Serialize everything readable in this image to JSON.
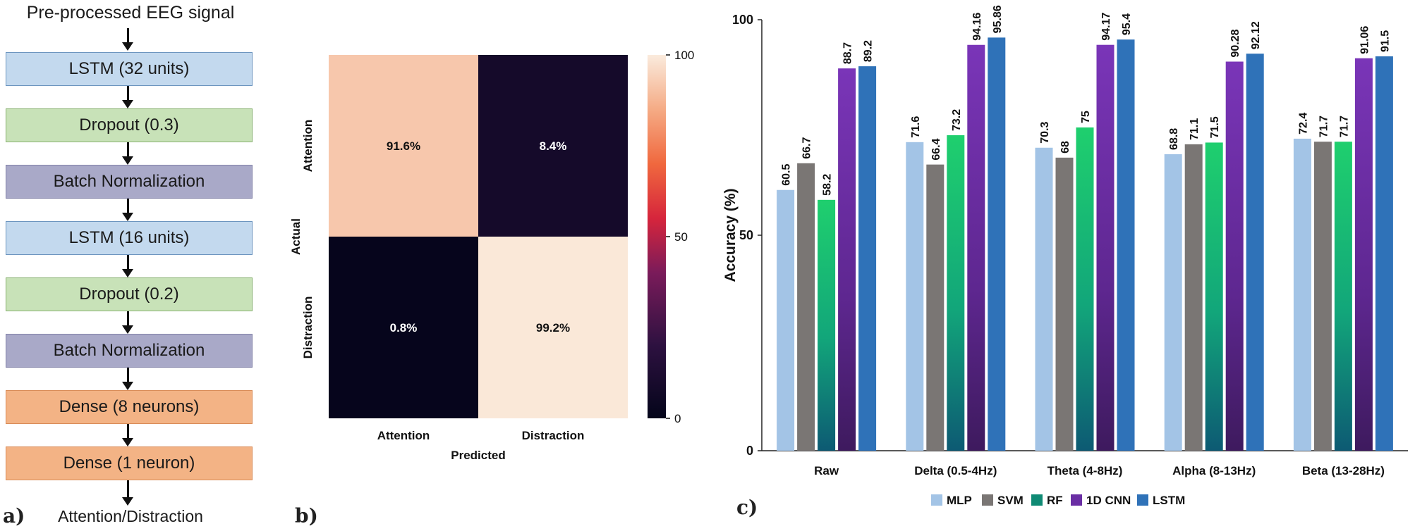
{
  "panel_a": {
    "label": "a)",
    "input_label": "Pre-processed EEG signal",
    "layers": [
      {
        "label": "LSTM (32  units)",
        "kind": "lstm"
      },
      {
        "label": "Dropout (0.3)",
        "kind": "drop"
      },
      {
        "label": "Batch Normalization",
        "kind": "bn"
      },
      {
        "label": "LSTM (16 units)",
        "kind": "lstm"
      },
      {
        "label": "Dropout (0.2)",
        "kind": "drop"
      },
      {
        "label": "Batch Normalization",
        "kind": "bn"
      },
      {
        "label": "Dense (8 neurons)",
        "kind": "dense"
      },
      {
        "label": "Dense (1 neuron)",
        "kind": "dense"
      }
    ],
    "output_label": "Attention/Distraction"
  },
  "panel_b": {
    "label": "b)"
  },
  "panel_c": {
    "label": "c)"
  },
  "chart_data": [
    {
      "type": "heatmap",
      "title": "",
      "xlabel": "Predicted",
      "ylabel": "Actual",
      "x_categories": [
        "Attention",
        "Distraction"
      ],
      "y_categories": [
        "Attention",
        "Distraction"
      ],
      "values": [
        [
          91.6,
          8.4
        ],
        [
          0.8,
          99.2
        ]
      ],
      "cell_labels": [
        [
          "91.6%",
          "8.4%"
        ],
        [
          "0.8%",
          "99.2%"
        ]
      ],
      "colorbar": {
        "min": 0,
        "max": 100,
        "ticks": [
          0,
          50,
          100
        ]
      }
    },
    {
      "type": "bar",
      "title": "",
      "xlabel": "",
      "ylabel": "Accuracy (%)",
      "ylim": [
        0,
        100
      ],
      "yticks": [
        0,
        50,
        100
      ],
      "categories": [
        "Raw",
        "Delta (0.5-4Hz)",
        "Theta (4-8Hz)",
        "Alpha (8-13Hz)",
        "Beta (13-28Hz)"
      ],
      "series": [
        {
          "name": "MLP",
          "color": "#a3c4e6",
          "values": [
            60.5,
            71.6,
            70.3,
            68.8,
            72.4
          ],
          "labels": [
            "60.5",
            "71.6",
            "70.3",
            "68.8",
            "72.4"
          ]
        },
        {
          "name": "SVM",
          "color": "#7a7674",
          "values": [
            66.7,
            66.4,
            68,
            71.1,
            71.7
          ],
          "labels": [
            "66.7",
            "66.4",
            "68",
            "71.1",
            "71.7"
          ]
        },
        {
          "name": "RF",
          "color": "#1fcf6e",
          "gradient_bottom": "#0d5a73",
          "values": [
            58.2,
            73.2,
            75,
            71.5,
            71.7
          ],
          "labels": [
            "58.2",
            "73.2",
            "75",
            "71.5",
            "71.7"
          ]
        },
        {
          "name": "1D CNN",
          "color": "#7a35b8",
          "gradient_bottom": "#3e1a5e",
          "values": [
            88.7,
            94.16,
            94.17,
            90.28,
            91.06
          ],
          "labels": [
            "88.7",
            "94.16",
            "94.17",
            "90.28",
            "91.06"
          ]
        },
        {
          "name": "LSTM",
          "color": "#2f72b8",
          "values": [
            89.2,
            95.86,
            95.4,
            92.12,
            91.5
          ],
          "labels": [
            "89.2",
            "95.86",
            "95.4",
            "92.12",
            "91.5"
          ]
        }
      ],
      "legend": "bottom"
    }
  ]
}
